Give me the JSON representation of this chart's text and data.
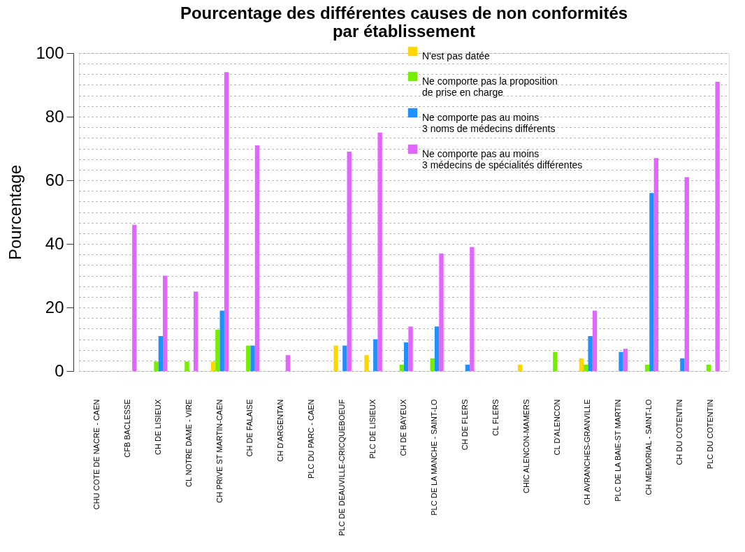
{
  "chart_data": {
    "type": "bar",
    "title": "Pourcentage des différentes causes de non conformités\npar établissement",
    "ylabel": "Pourcentage",
    "categories": [
      "CHU COTE DE NACRE - CAEN",
      "CFB BACLESSE",
      "CH DE LISIEUX",
      "CL NOTRE DAME - VIRE",
      "CH PRIVE ST MARTIN-CAEN",
      "CH DE FALAISE",
      "CH D'ARGENTAN",
      "PLC DU PARC - CAEN",
      "PLC DE DEAUVILLE-CRICQUEBOEUF",
      "PLC DE LISIEUX",
      "CH DE BAYEUX",
      "PLC DE LA MANCHE - SAINT-LO",
      "CH DE FLERS",
      "CL FLERS",
      "CHIC ALENCON-MAMERS",
      "CL D'ALENCON",
      "CH AVRANCHES-GRANVILLE",
      "PLC DE LA BAIE-ST MARTIN",
      "CH MEMORIAL - SAINT-LO",
      "CH DU COTENTIN",
      "PLC DU COTENTIN"
    ],
    "series": [
      {
        "name": "N'est pas datée",
        "color": "#ffd700",
        "values": [
          0,
          0,
          0,
          0,
          3,
          0,
          0,
          0,
          8,
          5,
          0,
          0,
          0,
          0,
          2,
          0,
          4,
          0,
          0,
          0,
          0
        ]
      },
      {
        "name": "Ne comporte pas la proposition\nde prise en charge",
        "color": "#76ee00",
        "values": [
          0,
          0,
          3,
          3,
          13,
          8,
          0,
          0,
          0,
          0,
          2,
          4,
          0,
          0,
          0,
          6,
          2,
          0,
          2,
          0,
          2
        ]
      },
      {
        "name": "Ne comporte pas au moins\n3 noms de médecins différents",
        "color": "#1e90ff",
        "values": [
          0,
          0,
          11,
          0,
          19,
          8,
          0,
          0,
          8,
          10,
          9,
          14,
          2,
          0,
          0,
          0,
          11,
          6,
          56,
          4,
          0
        ]
      },
      {
        "name": "Ne comporte pas au moins\n3 médecins de spécialités différentes",
        "color": "#e066ff",
        "values": [
          0,
          46,
          30,
          25,
          94,
          71,
          5,
          0,
          69,
          75,
          14,
          37,
          39,
          0,
          0,
          0,
          19,
          7,
          67,
          61,
          91
        ]
      }
    ],
    "ylim": [
      0,
      100
    ],
    "yticks": [
      0,
      {
        "value": 3.33,
        "label": null
      },
      {
        "value": 6.67,
        "label": null
      },
      {
        "value": 10,
        "label": null
      },
      {
        "value": 13.33,
        "label": null
      },
      {
        "value": 16.67,
        "label": null
      },
      20,
      {
        "value": 23.33,
        "label": null
      },
      {
        "value": 26.67,
        "label": null
      },
      {
        "value": 30,
        "label": null
      },
      {
        "value": 33.33,
        "label": null
      },
      {
        "value": 36.67,
        "label": null
      },
      40,
      {
        "value": 43.33,
        "label": null
      },
      {
        "value": 46.67,
        "label": null
      },
      {
        "value": 50,
        "label": null
      },
      {
        "value": 53.33,
        "label": null
      },
      {
        "value": 56.67,
        "label": null
      },
      60,
      {
        "value": 63.33,
        "label": null
      },
      {
        "value": 66.67,
        "label": null
      },
      {
        "value": 70,
        "label": null
      },
      {
        "value": 73.33,
        "label": null
      },
      {
        "value": 76.67,
        "label": null
      },
      80,
      {
        "value": 83.33,
        "label": null
      },
      {
        "value": 86.67,
        "label": null
      },
      {
        "value": 90,
        "label": null
      },
      {
        "value": 93.33,
        "label": null
      },
      {
        "value": 96.67,
        "label": null
      },
      100
    ],
    "grid": "y",
    "legend": "top"
  }
}
